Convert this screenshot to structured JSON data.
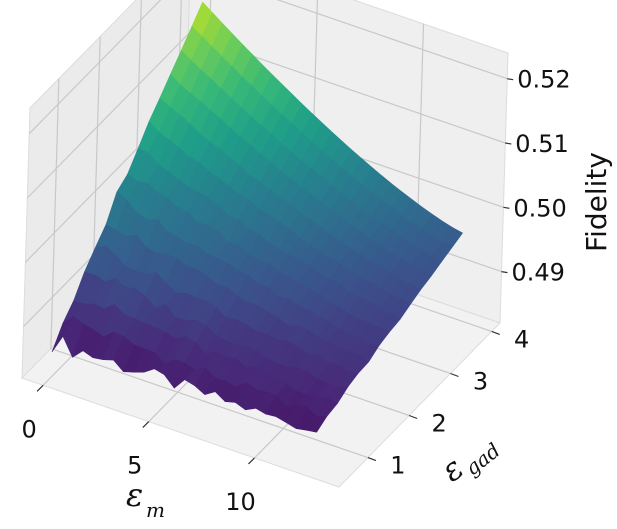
{
  "chart_data": {
    "type": "surface3d",
    "title": "",
    "xlabel": {
      "main": "ε",
      "sub": "m"
    },
    "ylabel": {
      "main": "ε",
      "sub": "gad"
    },
    "zlabel": "Fidelity",
    "xlim": [
      -1,
      14
    ],
    "ylim": [
      0.3,
      4.2
    ],
    "zlim": [
      0.482,
      0.524
    ],
    "x_ticks": [
      "0",
      "5",
      "10"
    ],
    "y_ticks": [
      "1",
      "2",
      "3",
      "4"
    ],
    "z_ticks": [
      "0.49",
      "0.50",
      "0.51",
      "0.52"
    ],
    "x_tick_values": [
      0,
      5,
      10
    ],
    "y_tick_values": [
      1,
      2,
      3,
      4
    ],
    "z_tick_values": [
      0.49,
      0.5,
      0.51,
      0.52
    ],
    "surface_x_range": [
      0,
      12.5
    ],
    "surface_y_range": [
      0.5,
      4.0
    ],
    "surface_z_range": [
      0.485,
      0.521
    ],
    "colormap": "viridis",
    "grid": true,
    "legend": "none",
    "pane_color": "#f2f2f2",
    "grid_color": "#c8c8c8"
  }
}
